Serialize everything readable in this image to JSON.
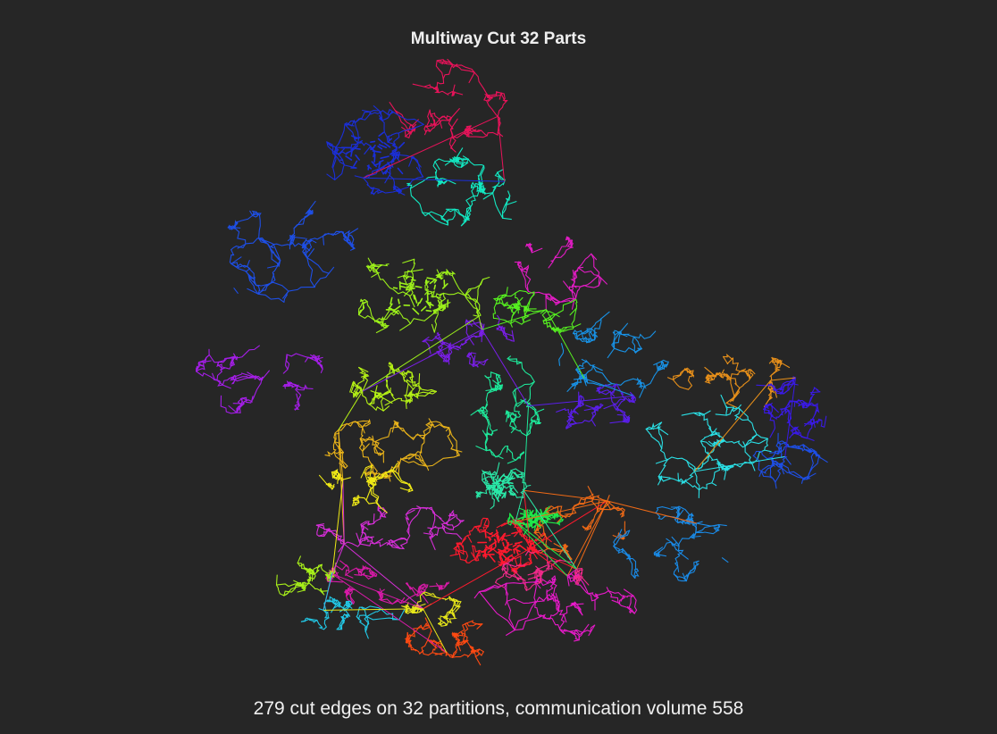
{
  "figure": {
    "title": "Multiway Cut 32 Parts",
    "caption": "279 cut edges on 32 partitions, communication volume 558",
    "background": "#262626"
  },
  "partition_stats": {
    "cut_edges": 279,
    "partitions": 32,
    "communication_volume": 558
  },
  "palette": [
    "#e8135a",
    "#1b2fd8",
    "#1e4fe6",
    "#13e8c2",
    "#e21cc4",
    "#9cf01a",
    "#56f020",
    "#a51ee8",
    "#7a1ee8",
    "#b4f016",
    "#1892e6",
    "#e8901a",
    "#5a1ee8",
    "#2ae0e6",
    "#e8b21a",
    "#1ee89a",
    "#d62ed8",
    "#f0ea16",
    "#ff1a2e",
    "#f06a16",
    "#1a8ae6",
    "#2ae8a8",
    "#1ee84a",
    "#d81aa8",
    "#e8e81a",
    "#22c8e6",
    "#ff4a12",
    "#e61ac8",
    "#3a1ae6",
    "#12c8d8",
    "#a8f01a",
    "#f02a8a"
  ]
}
